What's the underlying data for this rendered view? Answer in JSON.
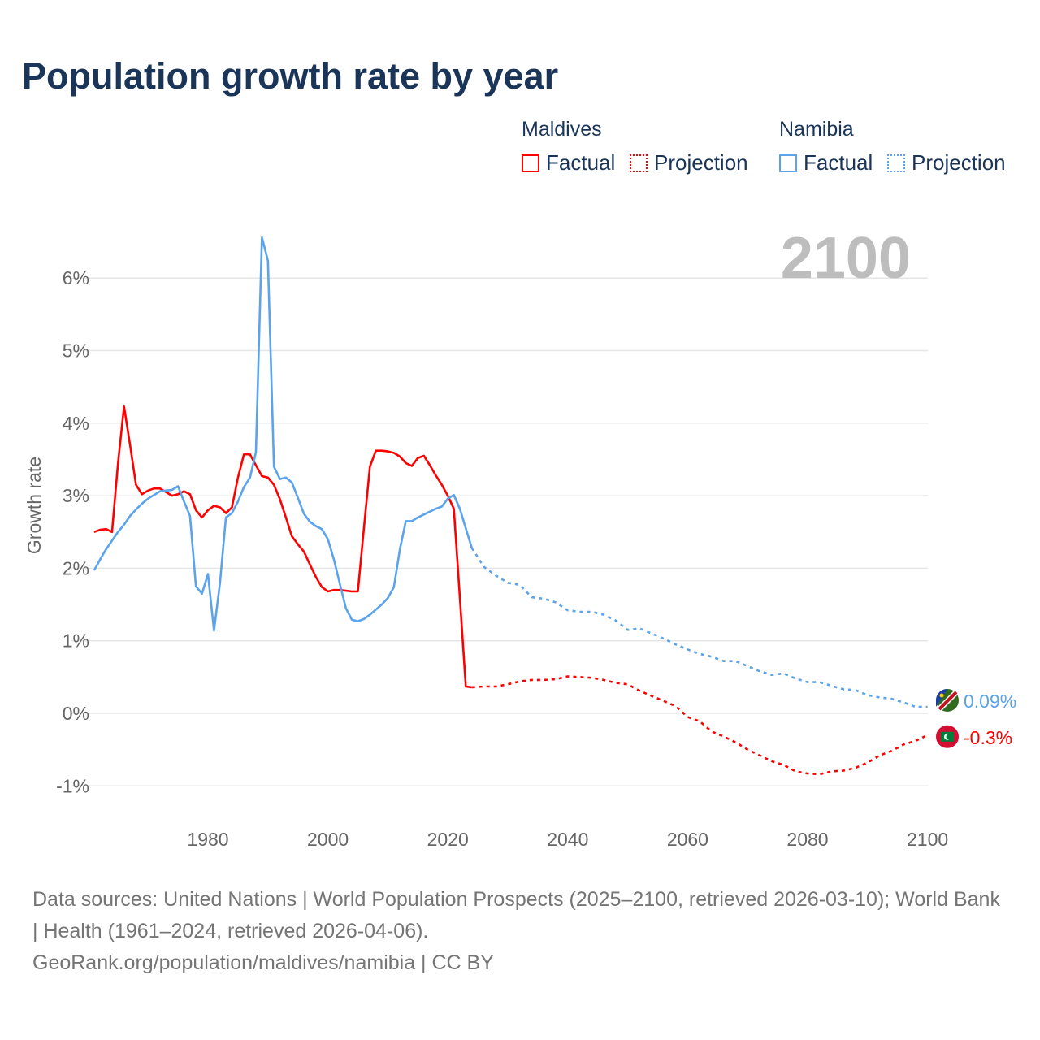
{
  "title": "Population growth rate by year",
  "legend": {
    "groups": [
      {
        "country": "Maldives",
        "factual": "Factual",
        "projection": "Projection",
        "color": "#ff0000"
      },
      {
        "country": "Namibia",
        "factual": "Factual",
        "projection": "Projection",
        "color": "#5ba3ea"
      }
    ]
  },
  "year_display": "2100",
  "footer": {
    "sources": "Data sources: United Nations | World Population Prospects (2025–2100, retrieved 2026-03-10); World Bank | Health (1961–2024, retrieved 2026-04-06).",
    "link": "GeoRank.org/population/maldives/namibia | CC BY"
  },
  "chart_data": {
    "type": "line",
    "title": "Population growth rate by year",
    "xlabel": "",
    "ylabel": "Growth rate",
    "xlim": [
      1961,
      2100
    ],
    "ylim": [
      -1.25,
      6.7
    ],
    "x_ticks": [
      1980,
      2000,
      2020,
      2040,
      2060,
      2080,
      2100
    ],
    "x_tick_labels": [
      "1980",
      "2000",
      "2020",
      "2040",
      "2060",
      "2080",
      "2100"
    ],
    "y_ticks": [
      -1,
      0,
      1,
      2,
      3,
      4,
      5,
      6
    ],
    "y_tick_labels": [
      "-1%",
      "0%",
      "1%",
      "2%",
      "3%",
      "4%",
      "5%",
      "6%"
    ],
    "grid": true,
    "legend_position": "top-right",
    "end_labels": {
      "Namibia": "0.09%",
      "Maldives": "-0.3%"
    },
    "series": [
      {
        "name": "Maldives",
        "color": "#ff0000",
        "factual": {
          "x": [
            1961,
            1962,
            1963,
            1964,
            1965,
            1966,
            1967,
            1968,
            1969,
            1970,
            1971,
            1972,
            1973,
            1974,
            1975,
            1976,
            1977,
            1978,
            1979,
            1980,
            1981,
            1982,
            1983,
            1984,
            1985,
            1986,
            1987,
            1988,
            1989,
            1990,
            1991,
            1992,
            1993,
            1994,
            1995,
            1996,
            1997,
            1998,
            1999,
            2000,
            2001,
            2002,
            2003,
            2004,
            2005,
            2006,
            2007,
            2008,
            2009,
            2010,
            2011,
            2012,
            2013,
            2014,
            2015,
            2016,
            2017,
            2018,
            2019,
            2020,
            2021,
            2022,
            2023,
            2024
          ],
          "y": [
            2.5,
            2.53,
            2.54,
            2.5,
            3.45,
            4.23,
            3.7,
            3.15,
            3.02,
            3.07,
            3.1,
            3.1,
            3.05,
            3.0,
            3.02,
            3.06,
            3.02,
            2.8,
            2.7,
            2.8,
            2.86,
            2.84,
            2.76,
            2.84,
            3.25,
            3.57,
            3.57,
            3.42,
            3.27,
            3.25,
            3.15,
            2.95,
            2.7,
            2.44,
            2.33,
            2.23,
            2.05,
            1.88,
            1.74,
            1.68,
            1.7,
            1.7,
            1.69,
            1.68,
            1.68,
            2.55,
            3.4,
            3.62,
            3.62,
            3.61,
            3.59,
            3.54,
            3.45,
            3.41,
            3.52,
            3.55,
            3.42,
            3.28,
            3.15,
            3.0,
            2.82,
            1.6,
            0.37,
            0.36
          ]
        },
        "projection": {
          "x": [
            2024,
            2026,
            2028,
            2030,
            2032,
            2034,
            2036,
            2038,
            2040,
            2042,
            2044,
            2046,
            2048,
            2050,
            2052,
            2054,
            2056,
            2058,
            2060,
            2062,
            2064,
            2066,
            2068,
            2070,
            2072,
            2074,
            2076,
            2078,
            2080,
            2082,
            2084,
            2086,
            2088,
            2090,
            2092,
            2094,
            2096,
            2098,
            2100
          ],
          "y": [
            0.36,
            0.37,
            0.37,
            0.4,
            0.44,
            0.46,
            0.46,
            0.47,
            0.51,
            0.5,
            0.49,
            0.46,
            0.42,
            0.4,
            0.31,
            0.24,
            0.17,
            0.1,
            -0.05,
            -0.11,
            -0.25,
            -0.32,
            -0.4,
            -0.5,
            -0.58,
            -0.66,
            -0.71,
            -0.8,
            -0.83,
            -0.84,
            -0.8,
            -0.79,
            -0.75,
            -0.68,
            -0.58,
            -0.52,
            -0.43,
            -0.38,
            -0.3
          ]
        }
      },
      {
        "name": "Namibia",
        "color": "#5ba3ea",
        "factual": {
          "x": [
            1961,
            1962,
            1963,
            1964,
            1965,
            1966,
            1967,
            1968,
            1969,
            1970,
            1971,
            1972,
            1973,
            1974,
            1975,
            1976,
            1977,
            1978,
            1979,
            1980,
            1981,
            1982,
            1983,
            1984,
            1985,
            1986,
            1987,
            1988,
            1989,
            1990,
            1991,
            1992,
            1993,
            1994,
            1995,
            1996,
            1997,
            1998,
            1999,
            2000,
            2001,
            2002,
            2003,
            2004,
            2005,
            2006,
            2007,
            2008,
            2009,
            2010,
            2011,
            2012,
            2013,
            2014,
            2015,
            2016,
            2017,
            2018,
            2019,
            2020,
            2021,
            2022,
            2023,
            2024
          ],
          "y": [
            1.97,
            2.12,
            2.26,
            2.38,
            2.5,
            2.6,
            2.72,
            2.81,
            2.89,
            2.96,
            3.01,
            3.06,
            3.07,
            3.08,
            3.13,
            2.92,
            2.72,
            1.75,
            1.65,
            1.92,
            1.14,
            1.8,
            2.7,
            2.76,
            2.92,
            3.12,
            3.25,
            3.6,
            6.56,
            6.24,
            3.4,
            3.23,
            3.25,
            3.18,
            2.97,
            2.75,
            2.64,
            2.58,
            2.54,
            2.4,
            2.12,
            1.78,
            1.45,
            1.29,
            1.27,
            1.3,
            1.36,
            1.43,
            1.5,
            1.59,
            1.74,
            2.26,
            2.65,
            2.65,
            2.7,
            2.74,
            2.78,
            2.82,
            2.85,
            2.96,
            3.01,
            2.82,
            2.55,
            2.28
          ]
        },
        "projection": {
          "x": [
            2024,
            2025,
            2026,
            2028,
            2030,
            2032,
            2034,
            2036,
            2038,
            2040,
            2042,
            2044,
            2046,
            2048,
            2050,
            2052,
            2054,
            2056,
            2058,
            2060,
            2062,
            2064,
            2066,
            2068,
            2070,
            2072,
            2074,
            2076,
            2078,
            2080,
            2082,
            2084,
            2086,
            2088,
            2090,
            2092,
            2094,
            2096,
            2098,
            2100
          ],
          "y": [
            2.28,
            2.15,
            2.02,
            1.9,
            1.8,
            1.77,
            1.6,
            1.58,
            1.53,
            1.42,
            1.4,
            1.4,
            1.36,
            1.28,
            1.15,
            1.17,
            1.1,
            1.03,
            0.95,
            0.88,
            0.82,
            0.78,
            0.72,
            0.72,
            0.65,
            0.58,
            0.53,
            0.55,
            0.48,
            0.43,
            0.43,
            0.38,
            0.33,
            0.32,
            0.25,
            0.22,
            0.2,
            0.15,
            0.09,
            0.09
          ]
        }
      }
    ]
  }
}
